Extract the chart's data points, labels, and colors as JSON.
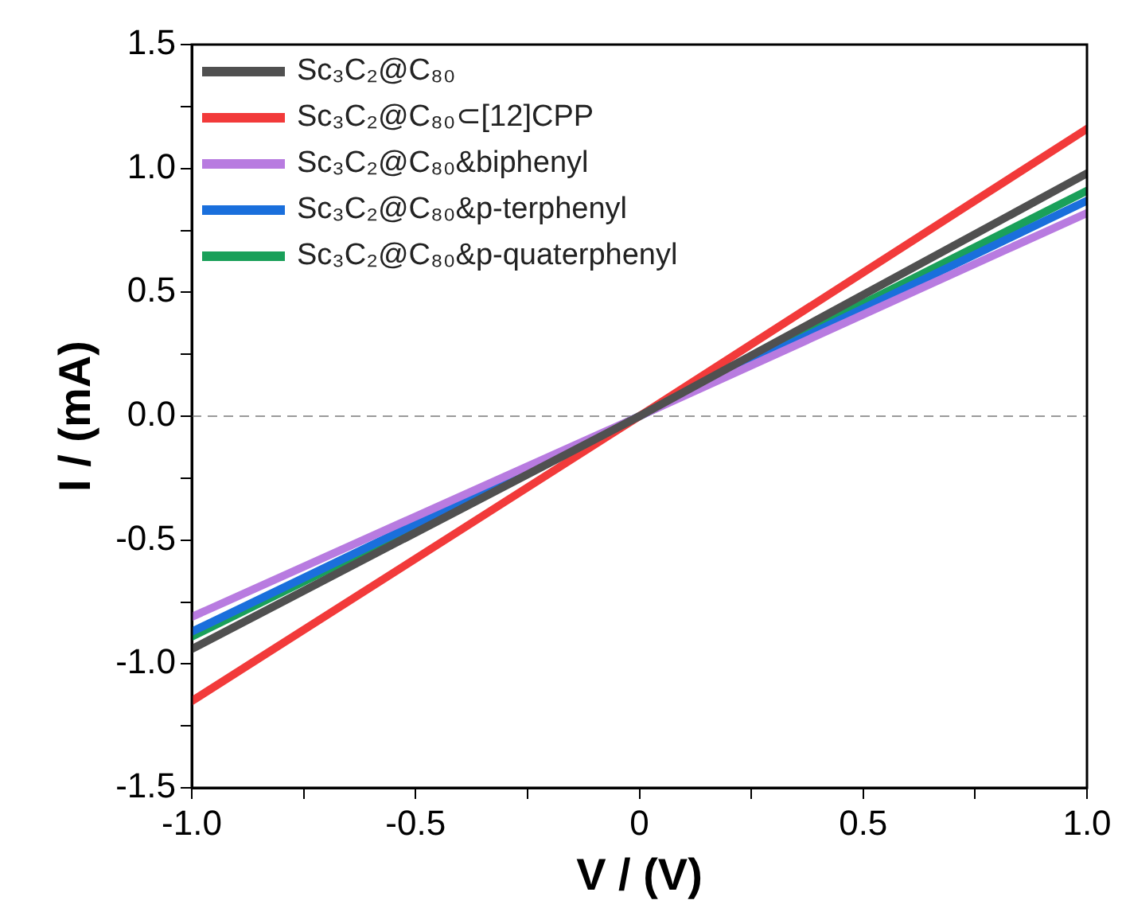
{
  "chart_data": {
    "type": "line",
    "xlabel": "V / (V)",
    "ylabel": "I / (mA)",
    "xlim": [
      -1,
      1
    ],
    "xticks": [
      {
        "value": -1,
        "label": "-1.0"
      },
      {
        "value": -0.75,
        "label": null
      },
      {
        "value": -0.5,
        "label": "-0.5"
      },
      {
        "value": -0.25,
        "label": null
      },
      {
        "value": 0,
        "label": "0"
      },
      {
        "value": 0.25,
        "label": null
      },
      {
        "value": 0.5,
        "label": "0.5"
      },
      {
        "value": 0.75,
        "label": null
      },
      {
        "value": 1,
        "label": "1.0"
      }
    ],
    "ylim": [
      -1.5,
      1.5
    ],
    "yticks": [
      {
        "value": -1.5,
        "label": "-1.5"
      },
      {
        "value": -1.25,
        "label": null
      },
      {
        "value": -1,
        "label": "-1.0"
      },
      {
        "value": -0.75,
        "label": null
      },
      {
        "value": -0.5,
        "label": "-0.5"
      },
      {
        "value": -0.25,
        "label": null
      },
      {
        "value": 0,
        "label": "0.0"
      },
      {
        "value": 0.25,
        "label": null
      },
      {
        "value": 0.5,
        "label": "0.5"
      },
      {
        "value": 0.75,
        "label": null
      },
      {
        "value": 1,
        "label": "1.0"
      },
      {
        "value": 1.25,
        "label": null
      },
      {
        "value": 1.5,
        "label": "1.5"
      }
    ],
    "x": [
      -1,
      0,
      1
    ],
    "series": [
      {
        "name": "Sc₃C₂@C₈₀",
        "color": "#505050",
        "values": [
          -0.94,
          0,
          0.98
        ]
      },
      {
        "name": "Sc₃C₂@C₈₀⊂[12]CPP",
        "color": "#f23a3a",
        "values": [
          -1.15,
          0,
          1.16
        ]
      },
      {
        "name": "Sc₃C₂@C₈₀&biphenyl",
        "color": "#b87be0",
        "values": [
          -0.81,
          0,
          0.82
        ]
      },
      {
        "name": "Sc₃C₂@C₈₀&p-terphenyl",
        "color": "#1a6fdc",
        "values": [
          -0.87,
          0,
          0.87
        ]
      },
      {
        "name": "Sc₃C₂@C₈₀&p-quaterphenyl",
        "color": "#1aa05a",
        "values": [
          -0.89,
          0,
          0.91
        ]
      }
    ],
    "ref_lines": [
      {
        "axis": "y",
        "value": 0,
        "color": "#9a9a9a",
        "line_style": "dashed"
      }
    ],
    "legend": "top left",
    "grid": false,
    "marker": "none",
    "line_style": "solid"
  }
}
